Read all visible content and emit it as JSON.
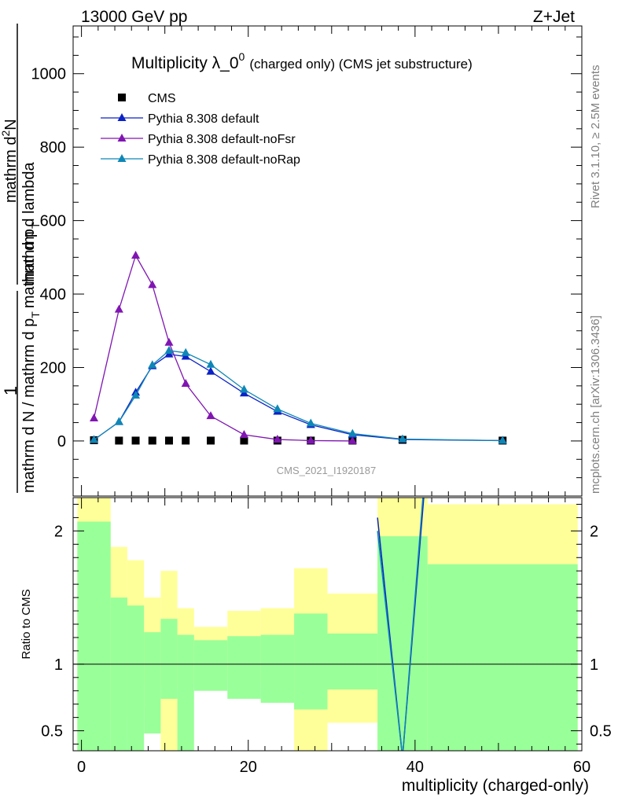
{
  "header": {
    "left": "13000 GeV pp",
    "right": "Z+Jet"
  },
  "side": {
    "top": "Rivet 3.1.10, ≥ 2.5M events",
    "bottom": "mcplots.cern.ch [arXiv:1306.3436]"
  },
  "colors": {
    "cms": "#000000",
    "default": "#0b22c6",
    "noFsr": "#8016b2",
    "noRap": "#0f87b6",
    "band_yellow": "#ffff99",
    "band_green": "#99ff99"
  },
  "chart_data": [
    {
      "type": "line",
      "title_main": "Multiplicity λ_0",
      "title_sup": "0",
      "title_suffix": "(charged only) (CMS jet substructure)",
      "ylabel_parts": [
        "1",
        "mathrm d N / mathrm d p",
        "T",
        "mathrm d p",
        "T",
        "mathrm d lambda",
        "mathrm d",
        "2",
        "N"
      ],
      "watermark": "CMS_2021_I1920187",
      "xlim": [
        -1,
        60
      ],
      "ylim": [
        -150,
        1130
      ],
      "yticks": [
        0,
        200,
        400,
        600,
        800,
        1000
      ],
      "legend_position": "top-left",
      "series": [
        {
          "name": "CMS",
          "style": "square",
          "color": "#000000",
          "x": [
            1.5,
            4.5,
            6.5,
            8.5,
            10.5,
            12.5,
            15.5,
            19.5,
            23.5,
            27.5,
            32.5,
            38.5,
            50.5
          ],
          "y": [
            2,
            1,
            1,
            1,
            1,
            1,
            1,
            1,
            1,
            1,
            1,
            3,
            1
          ]
        },
        {
          "name": "Pythia 8.308 default",
          "style": "line-triangle",
          "color": "#0b22c6",
          "x": [
            1.5,
            4.5,
            6.5,
            8.5,
            10.5,
            12.5,
            15.5,
            19.5,
            23.5,
            27.5,
            32.5,
            38.5,
            50.5
          ],
          "y": [
            3,
            52,
            132,
            204,
            236,
            230,
            189,
            130,
            80,
            44,
            17,
            4,
            1
          ]
        },
        {
          "name": "Pythia 8.308 default-noFsr",
          "style": "line-triangle",
          "color": "#8016b2",
          "x": [
            1.5,
            4.5,
            6.5,
            8.5,
            10.5,
            12.5,
            15.5,
            19.5,
            23.5,
            27.5,
            32.5
          ],
          "y": [
            62,
            358,
            505,
            425,
            268,
            156,
            68,
            17,
            4,
            1,
            0
          ]
        },
        {
          "name": "Pythia 8.308 default-noRap",
          "style": "line-triangle",
          "color": "#0f87b6",
          "x": [
            1.5,
            4.5,
            6.5,
            8.5,
            10.5,
            12.5,
            15.5,
            19.5,
            23.5,
            27.5,
            32.5,
            38.5,
            50.5
          ],
          "y": [
            3,
            52,
            124,
            207,
            246,
            240,
            208,
            140,
            87,
            48,
            20,
            5,
            1
          ]
        }
      ]
    },
    {
      "type": "area",
      "ylabel": "Ratio to CMS",
      "xlabel": "multiplicity (charged-only)",
      "xlim": [
        -1,
        60
      ],
      "ylim": [
        0.35,
        2.25
      ],
      "xticks": [
        0,
        20,
        40,
        60
      ],
      "yticks": [
        0.5,
        1,
        2
      ],
      "reference_line": 1,
      "bands": [
        {
          "x0": -0.5,
          "x1": 3.5,
          "y_lo": 0.0,
          "y_hi": 2.6,
          "g_lo": 0.0,
          "g_hi": 2.07
        },
        {
          "x0": 3.5,
          "x1": 5.5,
          "y_lo": 0.6,
          "y_hi": 1.88,
          "g_lo": 0.0,
          "g_hi": 1.5
        },
        {
          "x0": 5.5,
          "x1": 7.5,
          "y_lo": 0.67,
          "y_hi": 1.78,
          "g_lo": 0.0,
          "g_hi": 1.44
        },
        {
          "x0": 7.5,
          "x1": 9.5,
          "y_lo": 0.84,
          "y_hi": 1.5,
          "g_lo": 0.48,
          "g_hi": 1.24
        },
        {
          "x0": 9.5,
          "x1": 11.5,
          "y_lo": 0.0,
          "y_hi": 1.7,
          "g_lo": 0.74,
          "g_hi": 1.34
        },
        {
          "x0": 11.5,
          "x1": 13.5,
          "y_lo": 0.85,
          "y_hi": 1.42,
          "g_lo": 0.0,
          "g_hi": 1.22
        },
        {
          "x0": 13.5,
          "x1": 17.5,
          "y_lo": 0.9,
          "y_hi": 1.28,
          "g_lo": 0.8,
          "g_hi": 1.18
        },
        {
          "x0": 17.5,
          "x1": 21.5,
          "y_lo": 0.87,
          "y_hi": 1.4,
          "g_lo": 0.74,
          "g_hi": 1.21
        },
        {
          "x0": 21.5,
          "x1": 25.5,
          "y_lo": 0.86,
          "y_hi": 1.42,
          "g_lo": 0.71,
          "g_hi": 1.22
        },
        {
          "x0": 25.5,
          "x1": 29.5,
          "y_lo": 0.0,
          "y_hi": 1.72,
          "g_lo": 0.66,
          "g_hi": 1.38
        },
        {
          "x0": 29.5,
          "x1": 35.5,
          "y_lo": 0.56,
          "y_hi": 1.53,
          "g_lo": 0.81,
          "g_hi": 1.23
        },
        {
          "x0": 35.5,
          "x1": 41.5,
          "y_lo": 0.0,
          "y_hi": 2.6,
          "g_lo": 0.0,
          "g_hi": 1.96
        },
        {
          "x0": 41.5,
          "x1": 59.5,
          "y_lo": 0.0,
          "y_hi": 2.2,
          "g_lo": 0.0,
          "g_hi": 1.75
        }
      ],
      "ratio_lines": [
        {
          "name": "default",
          "color": "#0b22c6",
          "x": [
            35.5,
            38.5,
            41.5
          ],
          "y": [
            2.1,
            0.3,
            2.6
          ]
        },
        {
          "name": "noRap",
          "color": "#0f87b6",
          "x": [
            35.5,
            38.5,
            41.5
          ],
          "y": [
            2.0,
            0.3,
            2.7
          ]
        }
      ]
    }
  ]
}
